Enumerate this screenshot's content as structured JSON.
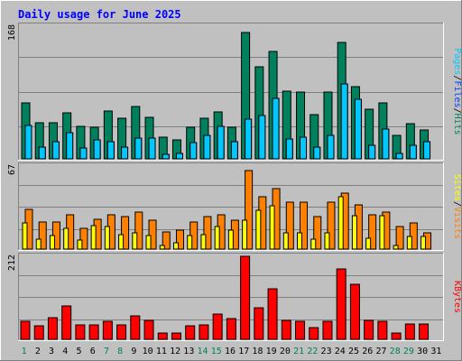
{
  "title": "Daily usage for June 2025",
  "colors": {
    "background": "#c0c0c0",
    "title": "#0000ff",
    "hits": "#00805c",
    "files": "#0040ff",
    "pages": "#00c8ff",
    "visits": "#ff8000",
    "sites": "#ffff00",
    "kbytes": "#ff0000",
    "weekend_label": "#00805c",
    "weekday_label": "#000000"
  },
  "chart_data": [
    {
      "type": "bar",
      "panel": "hits-files-pages",
      "y_max_label": "168",
      "ylim": [
        0,
        168
      ],
      "grid": true,
      "categories": [
        "1",
        "2",
        "3",
        "4",
        "5",
        "6",
        "7",
        "8",
        "9",
        "10",
        "11",
        "12",
        "13",
        "14",
        "15",
        "16",
        "17",
        "18",
        "19",
        "20",
        "21",
        "22",
        "23",
        "24",
        "25",
        "26",
        "27",
        "28",
        "29",
        "30"
      ],
      "legend": [
        "Pages",
        "Files",
        "Hits"
      ],
      "series": [
        {
          "name": "Hits",
          "values": [
            71,
            46,
            46,
            58,
            41,
            40,
            60,
            51,
            66,
            53,
            27,
            24,
            40,
            51,
            59,
            40,
            160,
            117,
            136,
            86,
            84,
            56,
            84,
            147,
            91,
            63,
            71,
            30,
            45,
            36
          ]
        },
        {
          "name": "Files",
          "values": [
            42,
            15,
            22,
            33,
            14,
            24,
            22,
            15,
            26,
            26,
            6,
            7,
            20,
            30,
            41,
            22,
            50,
            55,
            76,
            25,
            27,
            15,
            30,
            95,
            75,
            17,
            38,
            7,
            17,
            22
          ]
        },
        {
          "name": "Pages",
          "values": [
            42,
            15,
            22,
            33,
            14,
            24,
            22,
            15,
            26,
            26,
            6,
            7,
            20,
            30,
            41,
            22,
            50,
            55,
            76,
            25,
            27,
            15,
            30,
            95,
            75,
            17,
            38,
            7,
            17,
            22
          ]
        }
      ]
    },
    {
      "type": "bar",
      "panel": "visits-sites",
      "y_max_label": "67",
      "ylim": [
        0,
        67
      ],
      "grid": true,
      "categories": [
        "1",
        "2",
        "3",
        "4",
        "5",
        "6",
        "7",
        "8",
        "9",
        "10",
        "11",
        "12",
        "13",
        "14",
        "15",
        "16",
        "17",
        "18",
        "19",
        "20",
        "21",
        "22",
        "23",
        "24",
        "25",
        "26",
        "27",
        "28",
        "29",
        "30"
      ],
      "legend": [
        "Sites",
        "Visits"
      ],
      "series": [
        {
          "name": "Visits",
          "values": [
            32,
            22,
            22,
            28,
            17,
            24,
            28,
            26,
            30,
            23,
            14,
            15,
            22,
            26,
            28,
            23,
            63,
            42,
            49,
            38,
            38,
            26,
            38,
            45,
            36,
            28,
            30,
            18,
            21,
            13
          ]
        },
        {
          "name": "Sites",
          "values": [
            21,
            8,
            11,
            17,
            7,
            19,
            18,
            12,
            13,
            11,
            3,
            5,
            11,
            12,
            18,
            15,
            23,
            31,
            35,
            13,
            13,
            8,
            13,
            42,
            27,
            9,
            27,
            3,
            10,
            10
          ]
        }
      ]
    },
    {
      "type": "bar",
      "panel": "kbytes",
      "y_max_label": "212",
      "ylim": [
        0,
        212
      ],
      "grid": true,
      "categories": [
        "1",
        "2",
        "3",
        "4",
        "5",
        "6",
        "7",
        "8",
        "9",
        "10",
        "11",
        "12",
        "13",
        "14",
        "15",
        "16",
        "17",
        "18",
        "19",
        "20",
        "21",
        "22",
        "23",
        "24",
        "25",
        "26",
        "27",
        "28",
        "29",
        "30"
      ],
      "legend": [
        "KBytes"
      ],
      "series": [
        {
          "name": "KBytes",
          "values": [
            45,
            35,
            55,
            85,
            38,
            38,
            45,
            38,
            60,
            48,
            15,
            15,
            35,
            38,
            65,
            52,
            212,
            80,
            130,
            48,
            45,
            30,
            45,
            180,
            140,
            48,
            45,
            15,
            40,
            40
          ]
        }
      ]
    }
  ],
  "x_labels": [
    "1",
    "2",
    "3",
    "4",
    "5",
    "6",
    "7",
    "8",
    "9",
    "10",
    "11",
    "12",
    "13",
    "14",
    "15",
    "16",
    "17",
    "18",
    "19",
    "20",
    "21",
    "22",
    "23",
    "24",
    "25",
    "26",
    "27",
    "28",
    "29",
    "30",
    "31"
  ],
  "weekend_days": [
    "1",
    "7",
    "8",
    "14",
    "15",
    "21",
    "22",
    "28",
    "29"
  ]
}
